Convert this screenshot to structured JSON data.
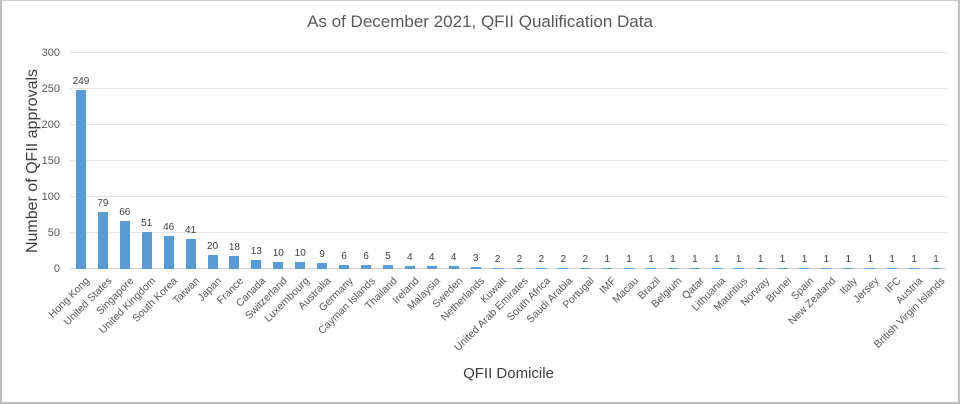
{
  "window": {
    "background": "#ffffff",
    "border_color": "#bdbdbd"
  },
  "chart_data": {
    "type": "bar",
    "title": "As of December 2021, QFII Qualification Data",
    "xlabel": "QFII Domicile",
    "ylabel": "Number of QFII approvals",
    "ylim": [
      0,
      300
    ],
    "yticks": [
      0,
      50,
      100,
      150,
      200,
      250,
      300
    ],
    "grid": true,
    "legend": false,
    "data_labels": true,
    "bar_color": "#5B9BD5",
    "categories": [
      "Hong Kong",
      "United States",
      "Singapore",
      "United Kingdom",
      "South Korea",
      "Taiwan",
      "Japan",
      "France",
      "Canada",
      "Switzerland",
      "Luxembourg",
      "Australia",
      "Germany",
      "Cayman Islands",
      "Thailand",
      "Ireland",
      "Malaysia",
      "Sweden",
      "Netherlands",
      "Kuwait",
      "United Arab Emirates",
      "South Africa",
      "Saudi Arabia",
      "Portugal",
      "IMF",
      "Macau",
      "Brazil",
      "Belgium",
      "Qatar",
      "Lithuania",
      "Mauritius",
      "Norway",
      "Brunei",
      "Spain",
      "New Zealand",
      "Italy",
      "Jersey",
      "IFC",
      "Austria",
      "British Virgin Islands"
    ],
    "values": [
      249,
      79,
      66,
      51,
      46,
      41,
      20,
      18,
      13,
      10,
      10,
      9,
      6,
      6,
      5,
      4,
      4,
      4,
      3,
      2,
      2,
      2,
      2,
      2,
      1,
      1,
      1,
      1,
      1,
      1,
      1,
      1,
      1,
      1,
      1,
      1,
      1,
      1,
      1,
      1
    ]
  }
}
